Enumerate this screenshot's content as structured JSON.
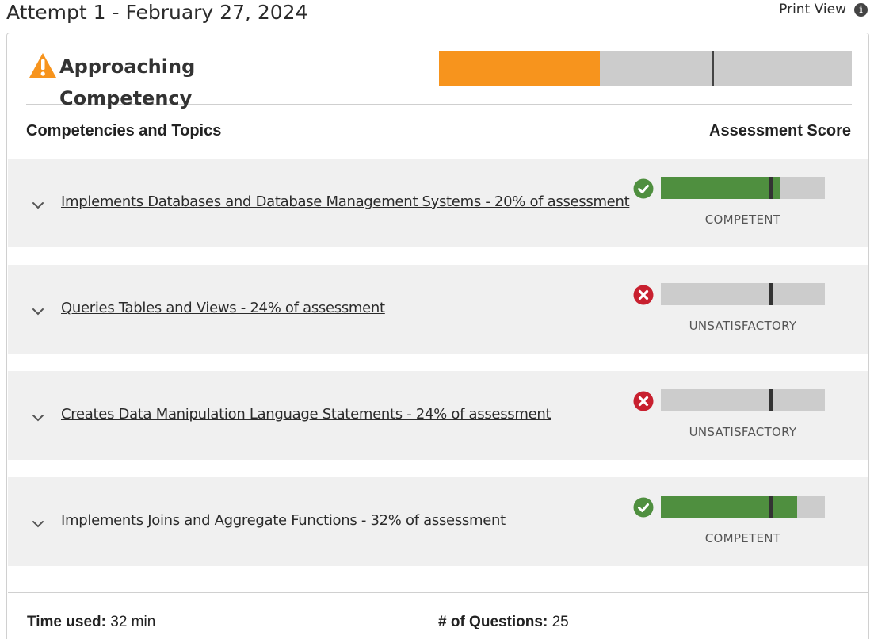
{
  "header": {
    "attempt_title": "Attempt 1 - February 27, 2024",
    "print_view_label": "Print View",
    "info_icon": "i"
  },
  "overall": {
    "status_label": "Approaching Competency",
    "status_icon": "warning-icon",
    "status_color": "#f7941d",
    "score_fraction": 0.39,
    "threshold_fraction": 0.66
  },
  "columns": {
    "left": "Competencies and Topics",
    "right": "Assessment Score"
  },
  "competencies": [
    {
      "title": "Implements Databases and Database Management Systems - 20% of assessment",
      "status": "COMPETENT",
      "status_icon": "check-circle-icon",
      "score_fraction": 0.73,
      "threshold_fraction": 0.66
    },
    {
      "title": "Queries Tables and Views - 24% of assessment",
      "status": "UNSATISFACTORY",
      "status_icon": "x-circle-icon",
      "score_fraction": 0.0,
      "threshold_fraction": 0.66
    },
    {
      "title": "Creates Data Manipulation Language Statements - 24% of assessment",
      "status": "UNSATISFACTORY",
      "status_icon": "x-circle-icon",
      "score_fraction": 0.0,
      "threshold_fraction": 0.66
    },
    {
      "title": "Implements Joins and Aggregate Functions - 32% of assessment",
      "status": "COMPETENT",
      "status_icon": "check-circle-icon",
      "score_fraction": 0.83,
      "threshold_fraction": 0.66
    }
  ],
  "footer": {
    "time_used_label": "Time used:",
    "time_used_value": "32 min",
    "questions_label": "# of Questions:",
    "questions_value": "25"
  },
  "colors": {
    "competent": "#4f8f3f",
    "unsatisfactory": "#c8202f",
    "approaching": "#f7941d",
    "bar_bg": "#cccccc"
  }
}
